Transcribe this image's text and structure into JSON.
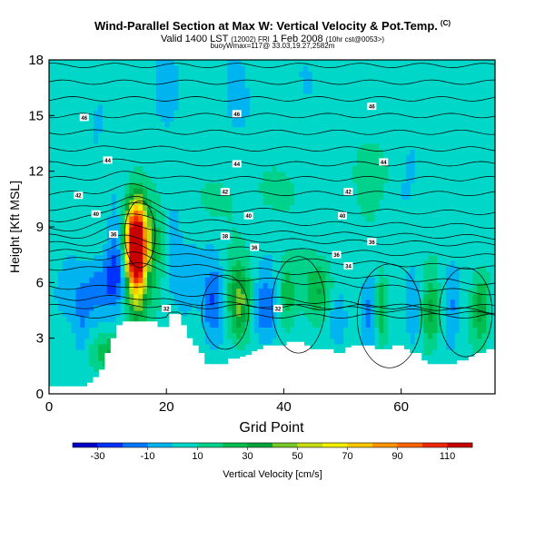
{
  "figure": {
    "title": "Wind-Parallel Section at Max W: Vertical Velocity & Pot.Temp.",
    "title_mark": "(C)",
    "valid_prefix": "Valid 1400 LST",
    "valid_detail": "(12002) FRI",
    "valid_date": "1 Feb 2008",
    "valid_suffix": "(10hr cst@0053>)",
    "buoy_line": "buoyWmax=117@ 33.03,19.27,2582m"
  },
  "chart_data": {
    "type": "heatmap",
    "title": "Wind-Parallel Section at Max W: Vertical Velocity & Pot.Temp.",
    "xlabel": "Grid Point",
    "ylabel": "Height [Kft MSL]",
    "xlim": [
      0,
      76
    ],
    "ylim": [
      0,
      18
    ],
    "xticks": [
      0,
      20,
      40,
      60
    ],
    "yticks": [
      0,
      3,
      6,
      9,
      12,
      15,
      18
    ],
    "colorbar": {
      "label": "Vertical Velocity [cm/s]",
      "range": [
        -40,
        120
      ],
      "ticks": [
        -30,
        -10,
        10,
        30,
        50,
        70,
        90,
        110
      ],
      "levels": [
        {
          "from": -40,
          "to": -30,
          "color": "#0000c8"
        },
        {
          "from": -30,
          "to": -20,
          "color": "#0032ff"
        },
        {
          "from": -20,
          "to": -10,
          "color": "#0078ff"
        },
        {
          "from": -10,
          "to": 0,
          "color": "#00b4f0"
        },
        {
          "from": 0,
          "to": 10,
          "color": "#00d7c8"
        },
        {
          "from": 10,
          "to": 20,
          "color": "#00d28c"
        },
        {
          "from": 20,
          "to": 30,
          "color": "#00be50"
        },
        {
          "from": 30,
          "to": 40,
          "color": "#00a53c"
        },
        {
          "from": 40,
          "to": 50,
          "color": "#78c828"
        },
        {
          "from": 50,
          "to": 60,
          "color": "#c8dc14"
        },
        {
          "from": 60,
          "to": 70,
          "color": "#f0f000"
        },
        {
          "from": 70,
          "to": 80,
          "color": "#ffc800"
        },
        {
          "from": 80,
          "to": 90,
          "color": "#ff9600"
        },
        {
          "from": 90,
          "to": 100,
          "color": "#ff6400"
        },
        {
          "from": 100,
          "to": 110,
          "color": "#f02800"
        },
        {
          "from": 110,
          "to": 120,
          "color": "#c80000"
        }
      ]
    },
    "background_w": 5,
    "w_features": [
      {
        "x": 14.8,
        "y": 7.6,
        "rx": 1.6,
        "ry": 2.6,
        "w": 112
      },
      {
        "x": 15.0,
        "y": 8.4,
        "rx": 2.8,
        "ry": 1.9,
        "w": 40
      },
      {
        "x": 15.5,
        "y": 7.0,
        "rx": 3.4,
        "ry": 3.2,
        "w": 22
      },
      {
        "x": 11.5,
        "y": 8.0,
        "rx": 1.6,
        "ry": 2.4,
        "w": -26
      },
      {
        "x": 11.2,
        "y": 6.2,
        "rx": 4.0,
        "ry": 1.6,
        "w": -22
      },
      {
        "x": 6.0,
        "y": 5.2,
        "rx": 4.5,
        "ry": 1.6,
        "w": -14
      },
      {
        "x": 21.0,
        "y": 8.0,
        "rx": 1.6,
        "ry": 3.0,
        "w": -14
      },
      {
        "x": 23.5,
        "y": 6.0,
        "rx": 1.6,
        "ry": 1.8,
        "w": -12
      },
      {
        "x": 28.0,
        "y": 5.0,
        "rx": 1.8,
        "ry": 2.2,
        "w": -26
      },
      {
        "x": 32.5,
        "y": 5.0,
        "rx": 2.0,
        "ry": 2.0,
        "w": 40
      },
      {
        "x": 36.8,
        "y": 4.6,
        "rx": 2.2,
        "ry": 1.8,
        "w": -24
      },
      {
        "x": 40.5,
        "y": 5.4,
        "rx": 1.5,
        "ry": 1.8,
        "w": 22
      },
      {
        "x": 46.0,
        "y": 5.6,
        "rx": 2.5,
        "ry": 1.6,
        "w": 26
      },
      {
        "x": 49.0,
        "y": 4.0,
        "rx": 1.6,
        "ry": 1.6,
        "w": -16
      },
      {
        "x": 55.0,
        "y": 4.6,
        "rx": 1.8,
        "ry": 2.0,
        "w": -20
      },
      {
        "x": 56.5,
        "y": 4.6,
        "rx": 1.1,
        "ry": 1.8,
        "w": 34
      },
      {
        "x": 62.0,
        "y": 4.5,
        "rx": 1.3,
        "ry": 2.0,
        "w": -14
      },
      {
        "x": 65.0,
        "y": 4.3,
        "rx": 1.5,
        "ry": 2.0,
        "w": 28
      },
      {
        "x": 68.5,
        "y": 4.8,
        "rx": 1.4,
        "ry": 2.2,
        "w": -16
      },
      {
        "x": 73.5,
        "y": 4.6,
        "rx": 1.5,
        "ry": 1.8,
        "w": 30
      },
      {
        "x": 10.0,
        "y": 2.2,
        "rx": 3.0,
        "ry": 1.0,
        "w": 28
      },
      {
        "x": 5.5,
        "y": 3.2,
        "rx": 1.2,
        "ry": 1.4,
        "w": -12
      },
      {
        "x": 8.0,
        "y": 13.0,
        "rx": 3.5,
        "ry": 3.0,
        "w": -5
      },
      {
        "x": 20.0,
        "y": 16.0,
        "rx": 3.5,
        "ry": 2.5,
        "w": -5
      },
      {
        "x": 33.0,
        "y": 15.5,
        "rx": 3.5,
        "ry": 2.5,
        "w": -5
      },
      {
        "x": 47.0,
        "y": 16.5,
        "rx": 3.5,
        "ry": 2.0,
        "w": -5
      },
      {
        "x": 62.0,
        "y": 13.0,
        "rx": 3.0,
        "ry": 3.0,
        "w": -5
      },
      {
        "x": 72.0,
        "y": 15.0,
        "rx": 3.0,
        "ry": 2.5,
        "w": -5
      },
      {
        "x": 38.0,
        "y": 11.0,
        "rx": 3.0,
        "ry": 1.5,
        "w": 12
      },
      {
        "x": 55.0,
        "y": 12.0,
        "rx": 3.0,
        "ry": 1.8,
        "w": 12
      },
      {
        "x": 27.0,
        "y": 10.5,
        "rx": 3.0,
        "ry": 1.5,
        "w": 10
      }
    ],
    "terrain": {
      "x": [
        0,
        1,
        2,
        3,
        4,
        5,
        6,
        7,
        8,
        9,
        10,
        11,
        12,
        13,
        14,
        15,
        16,
        17,
        18,
        19,
        20,
        21,
        22,
        23,
        24,
        25,
        26,
        27,
        28,
        29,
        30,
        31,
        32,
        33,
        34,
        35,
        36,
        37,
        38,
        39,
        40,
        41,
        42,
        43,
        44,
        45,
        46,
        47,
        48,
        49,
        50,
        51,
        52,
        53,
        54,
        55,
        56,
        57,
        58,
        59,
        60,
        61,
        62,
        63,
        64,
        65,
        66,
        67,
        68,
        69,
        70,
        71,
        72,
        73,
        74,
        75,
        76
      ],
      "height": [
        0.4,
        0.4,
        0.4,
        0.4,
        0.4,
        0.4,
        0.4,
        0.6,
        0.9,
        1.3,
        2.2,
        3.0,
        3.7,
        3.9,
        3.9,
        3.9,
        3.9,
        3.9,
        3.9,
        3.6,
        3.6,
        4.3,
        4.3,
        3.7,
        3.0,
        2.6,
        2.2,
        1.6,
        1.6,
        1.6,
        1.6,
        1.9,
        1.9,
        2.0,
        2.1,
        2.3,
        2.4,
        2.6,
        2.6,
        2.6,
        2.6,
        2.8,
        2.8,
        2.8,
        2.6,
        2.4,
        2.4,
        2.4,
        2.4,
        2.2,
        2.2,
        2.5,
        2.6,
        2.6,
        2.6,
        2.6,
        2.4,
        2.4,
        2.4,
        2.6,
        2.6,
        2.4,
        2.2,
        2.2,
        1.8,
        1.6,
        1.6,
        1.6,
        1.6,
        1.6,
        1.8,
        1.8,
        2.0,
        2.2,
        2.2,
        2.4,
        2.4
      ]
    },
    "theta_contours": [
      {
        "base": 4.2,
        "bump": 0.0,
        "slope": 0.0
      },
      {
        "base": 4.7,
        "bump": 0.1,
        "slope": 0.0
      },
      {
        "base": 5.2,
        "bump": 0.2,
        "slope": 0.02
      },
      {
        "base": 5.8,
        "bump": 0.3,
        "slope": 0.03
      },
      {
        "base": 6.8,
        "bump": 0.5,
        "slope": 0.03
      },
      {
        "base": 7.3,
        "bump": 0.5,
        "slope": 0.03
      },
      {
        "base": 7.7,
        "bump": 0.5,
        "slope": 0.02
      },
      {
        "base": 8.1,
        "bump": 0.5,
        "slope": 0.015
      },
      {
        "base": 8.5,
        "bump": 0.8,
        "slope": 0.01
      },
      {
        "base": 8.9,
        "bump": 1.0,
        "slope": 0.01
      },
      {
        "base": 9.4,
        "bump": 1.0,
        "slope": 0.008
      },
      {
        "base": 10.0,
        "bump": 0.6,
        "slope": 0.005
      },
      {
        "base": 10.8,
        "bump": 0.4,
        "slope": 0.0
      },
      {
        "base": 11.6,
        "bump": 0.3,
        "slope": 0.0
      },
      {
        "base": 12.4,
        "bump": 0.2,
        "slope": 0.0
      },
      {
        "base": 13.2,
        "bump": 0.1,
        "slope": 0.0
      },
      {
        "base": 14.1,
        "bump": 0.1,
        "slope": 0.0
      },
      {
        "base": 15.0,
        "bump": 0.0,
        "slope": 0.0
      },
      {
        "base": 15.9,
        "bump": 0.0,
        "slope": 0.0
      },
      {
        "base": 16.8,
        "bump": 0.0,
        "slope": 0.0
      },
      {
        "base": 17.7,
        "bump": 0.0,
        "slope": 0.0
      }
    ],
    "contour_labels": [
      {
        "x": 6,
        "y": 14.9,
        "text": "46"
      },
      {
        "x": 32,
        "y": 15.1,
        "text": "46"
      },
      {
        "x": 55,
        "y": 15.5,
        "text": "46"
      },
      {
        "x": 10,
        "y": 12.6,
        "text": "44"
      },
      {
        "x": 32,
        "y": 12.4,
        "text": "44"
      },
      {
        "x": 57,
        "y": 12.5,
        "text": "44"
      },
      {
        "x": 5,
        "y": 10.7,
        "text": "42"
      },
      {
        "x": 30,
        "y": 10.9,
        "text": "42"
      },
      {
        "x": 51,
        "y": 10.9,
        "text": "42"
      },
      {
        "x": 8,
        "y": 9.7,
        "text": "40"
      },
      {
        "x": 34,
        "y": 9.6,
        "text": "40"
      },
      {
        "x": 50,
        "y": 9.6,
        "text": "40"
      },
      {
        "x": 11,
        "y": 8.6,
        "text": "36"
      },
      {
        "x": 30,
        "y": 8.5,
        "text": "38"
      },
      {
        "x": 35,
        "y": 7.9,
        "text": "36"
      },
      {
        "x": 55,
        "y": 8.2,
        "text": "36"
      },
      {
        "x": 49,
        "y": 7.5,
        "text": "36"
      },
      {
        "x": 51,
        "y": 6.9,
        "text": "34"
      },
      {
        "x": 20,
        "y": 4.6,
        "text": "32"
      },
      {
        "x": 39,
        "y": 4.6,
        "text": "32"
      }
    ],
    "closed_contours": [
      {
        "cx": 15.5,
        "cy": 8.6,
        "rx": 2.6,
        "ry": 1.8
      },
      {
        "cx": 30.0,
        "cy": 4.4,
        "rx": 4.0,
        "ry": 2.0
      },
      {
        "cx": 42.5,
        "cy": 4.8,
        "rx": 4.5,
        "ry": 2.6
      },
      {
        "cx": 58.0,
        "cy": 4.2,
        "rx": 5.5,
        "ry": 2.8
      },
      {
        "cx": 71.0,
        "cy": 4.4,
        "rx": 4.5,
        "ry": 2.4
      }
    ]
  }
}
